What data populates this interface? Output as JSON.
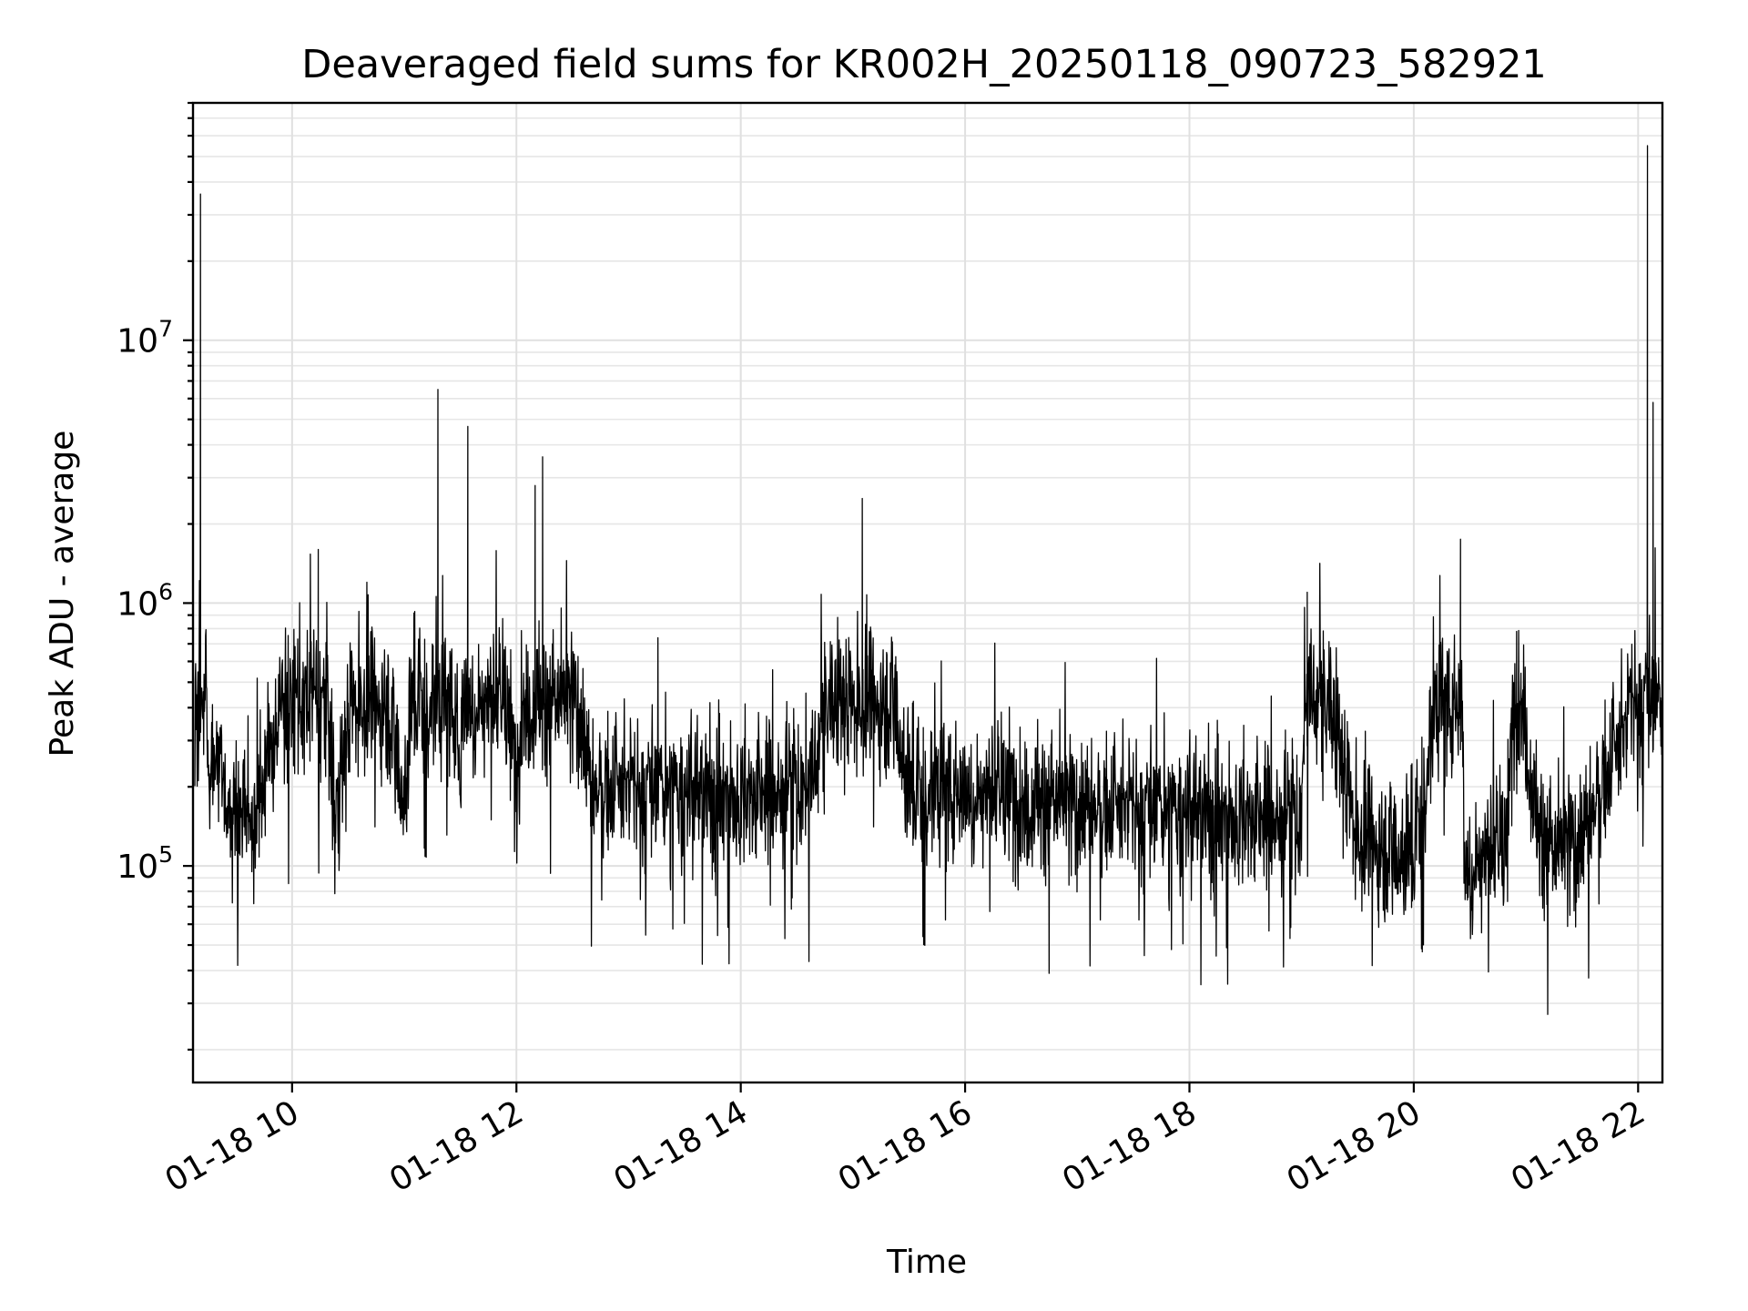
{
  "chart_data": {
    "type": "line",
    "title": "Deaveraged field sums for KR002H_20250118_090723_582921",
    "xlabel": "Time",
    "ylabel": "Peak ADU - average",
    "y_scale": "log",
    "ylim": [
      15000,
      80000000
    ],
    "xlim": [
      "2025-01-18 09:07",
      "2025-01-18 22:13"
    ],
    "grid": true,
    "x_ticks": [
      {
        "t": "2025-01-18 10:00",
        "label": "01-18 10"
      },
      {
        "t": "2025-01-18 12:00",
        "label": "01-18 12"
      },
      {
        "t": "2025-01-18 14:00",
        "label": "01-18 14"
      },
      {
        "t": "2025-01-18 16:00",
        "label": "01-18 16"
      },
      {
        "t": "2025-01-18 18:00",
        "label": "01-18 18"
      },
      {
        "t": "2025-01-18 20:00",
        "label": "01-18 20"
      },
      {
        "t": "2025-01-18 22:00",
        "label": "01-18 22"
      }
    ],
    "y_ticks": [
      {
        "value": 100000,
        "base": "10",
        "exp": "5"
      },
      {
        "value": 1000000,
        "base": "10",
        "exp": "6"
      },
      {
        "value": 10000000,
        "base": "10",
        "exp": "7"
      }
    ],
    "series": [
      {
        "color": "#000000",
        "x": [
          "2025-01-18 09:08",
          "2025-01-18 09:11",
          "2025-01-18 09:15",
          "2025-01-18 09:20",
          "2025-01-18 09:25",
          "2025-01-18 09:40",
          "2025-01-18 10:14",
          "2025-01-18 10:23",
          "2025-01-18 10:40",
          "2025-01-18 11:00",
          "2025-01-18 11:18",
          "2025-01-18 11:30",
          "2025-01-18 11:34",
          "2025-01-18 12:00",
          "2025-01-18 12:10",
          "2025-01-18 12:14",
          "2025-01-18 12:40",
          "2025-01-18 13:20",
          "2025-01-18 14:00",
          "2025-01-18 14:38",
          "2025-01-18 15:05",
          "2025-01-18 15:30",
          "2025-01-18 15:50",
          "2025-01-18 16:30",
          "2025-01-18 17:00",
          "2025-01-18 17:40",
          "2025-01-18 18:30",
          "2025-01-18 19:00",
          "2025-01-18 19:03",
          "2025-01-18 19:30",
          "2025-01-18 20:00",
          "2025-01-18 20:25",
          "2025-01-18 20:27",
          "2025-01-18 20:50",
          "2025-01-18 20:55",
          "2025-01-18 21:05",
          "2025-01-18 21:15",
          "2025-01-18 21:30",
          "2025-01-18 21:40",
          "2025-01-18 21:55",
          "2025-01-18 22:05",
          "2025-01-18 22:08",
          "2025-01-18 22:10",
          "2025-01-18 22:13"
        ],
        "y": [
          250000,
          36000000,
          220000,
          300000,
          180000,
          150000,
          1600000,
          150000,
          1200000,
          180000,
          6500000,
          200000,
          4700000,
          210000,
          2800000,
          3600000,
          200000,
          190000,
          180000,
          200000,
          2500000,
          190000,
          200000,
          180000,
          170000,
          160000,
          150000,
          150000,
          1100000,
          130000,
          110000,
          1750000,
          100000,
          120000,
          780000,
          150000,
          110000,
          130000,
          200000,
          350000,
          55000000,
          5800000,
          300000,
          800000
        ]
      }
    ]
  }
}
